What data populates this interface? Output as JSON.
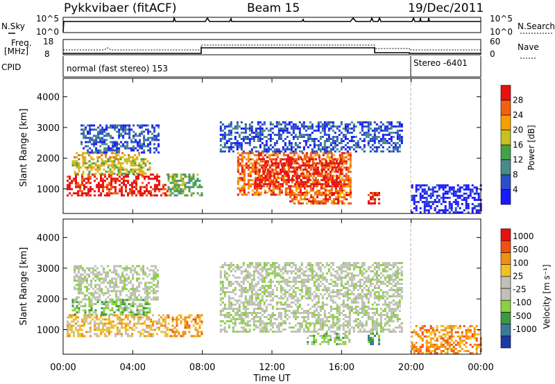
{
  "header": {
    "station": "Pykkvibaer (fitACF)",
    "beam": "Beam 15",
    "date": "19/Dec/2011"
  },
  "aux_panels": {
    "nsky_label": "N.Sky",
    "nsky_ticks": [
      "10^5",
      "10^0"
    ],
    "nsearch_label": "N.Search",
    "nsearch_ticks": [
      "10^5",
      "10^0"
    ],
    "freq_label": "Freq.",
    "freq_unit": "[MHz]",
    "freq_ticks": [
      "18",
      "8"
    ],
    "nave_label": "Nave",
    "nave_ticks": [
      "60",
      "0"
    ],
    "cpid_label": "CPID",
    "cpid_segments": [
      {
        "label": "normal (fast stereo) 153",
        "start_hour": 0,
        "end_hour": 20
      },
      {
        "label": "Stereo -6401",
        "start_hour": 20,
        "end_hour": 24
      }
    ]
  },
  "chart_data": [
    {
      "type": "heatmap",
      "name": "power-panel",
      "ylabel": "Slant Range [km]",
      "yticks": [
        "1000",
        "2000",
        "3000",
        "4000"
      ],
      "ylim": [
        200,
        4600
      ],
      "colorbar_label": "Power [dB]",
      "colorbar_ticks": [
        "4",
        "8",
        "12",
        "16",
        "20",
        "24",
        "28"
      ],
      "colorbar_colors": [
        "#1a1aff",
        "#2a4fc8",
        "#4a8a8a",
        "#44a04a",
        "#c8c020",
        "#f5a000",
        "#f06010",
        "#e81010"
      ],
      "mode_change_hour": 20,
      "regions": [
        {
          "start_hour": 0.2,
          "end_hour": 6.0,
          "range_min": 800,
          "range_max": 1500,
          "level": 7
        },
        {
          "start_hour": 0.5,
          "end_hour": 5.0,
          "range_min": 1500,
          "range_max": 2000,
          "level": 4
        },
        {
          "start_hour": 0.6,
          "end_hour": 4.5,
          "range_min": 2000,
          "range_max": 2200,
          "level": 5
        },
        {
          "start_hour": 1.0,
          "end_hour": 5.5,
          "range_min": 2200,
          "range_max": 3100,
          "level": 1
        },
        {
          "start_hour": 6.0,
          "end_hour": 8.0,
          "range_min": 800,
          "range_max": 1500,
          "level": 3
        },
        {
          "start_hour": 10.0,
          "end_hour": 16.5,
          "range_min": 800,
          "range_max": 2200,
          "level": 6
        },
        {
          "start_hour": 11.0,
          "end_hour": 16.0,
          "range_min": 1100,
          "range_max": 2000,
          "level": 7
        },
        {
          "start_hour": 9.0,
          "end_hour": 19.5,
          "range_min": 2200,
          "range_max": 3200,
          "level": 1
        },
        {
          "start_hour": 13.0,
          "end_hour": 16.5,
          "range_min": 500,
          "range_max": 900,
          "level": 6
        },
        {
          "start_hour": 17.5,
          "end_hour": 18.2,
          "range_min": 500,
          "range_max": 900,
          "level": 7
        },
        {
          "start_hour": 20.0,
          "end_hour": 24.0,
          "range_min": 250,
          "range_max": 1150,
          "level": 0
        }
      ]
    },
    {
      "type": "heatmap",
      "name": "velocity-panel",
      "ylabel": "Slant Range [km]",
      "yticks": [
        "1000",
        "2000",
        "3000",
        "4000"
      ],
      "ylim": [
        200,
        4600
      ],
      "colorbar_label": "Velocity [m s⁻¹]",
      "colorbar_ticks": [
        "1000",
        "500",
        "100",
        "25",
        "-25",
        "-100",
        "-500",
        "-1000"
      ],
      "colorbar_colors": [
        "#1a3aa8",
        "#3a7a9a",
        "#3a9a40",
        "#8ad040",
        "#c0c0b8",
        "#c0c0b8",
        "#f2c020",
        "#f09010",
        "#f05010",
        "#e81010"
      ],
      "mode_change_hour": 20,
      "regions": [
        {
          "start_hour": 0.2,
          "end_hour": 6.0,
          "range_min": 800,
          "range_max": 1500,
          "level": 6
        },
        {
          "start_hour": 0.5,
          "end_hour": 5.0,
          "range_min": 1500,
          "range_max": 2000,
          "level": 3
        },
        {
          "start_hour": 0.6,
          "end_hour": 5.5,
          "range_min": 2000,
          "range_max": 3100,
          "level": 4
        },
        {
          "start_hour": 6.0,
          "end_hour": 8.0,
          "range_min": 800,
          "range_max": 1500,
          "level": 7
        },
        {
          "start_hour": 9.0,
          "end_hour": 19.5,
          "range_min": 900,
          "range_max": 3200,
          "level": 4
        },
        {
          "start_hour": 14.0,
          "end_hour": 16.5,
          "range_min": 500,
          "range_max": 900,
          "level": 3
        },
        {
          "start_hour": 17.5,
          "end_hour": 18.2,
          "range_min": 500,
          "range_max": 900,
          "level": 2
        },
        {
          "start_hour": 20.0,
          "end_hour": 24.0,
          "range_min": 250,
          "range_max": 1150,
          "level": 7
        }
      ]
    }
  ],
  "time_axis": {
    "label": "Time UT",
    "ticks": [
      "00:00",
      "04:00",
      "08:00",
      "12:00",
      "16:00",
      "20:00",
      "00:00"
    ],
    "range_hours": [
      0,
      24
    ]
  }
}
